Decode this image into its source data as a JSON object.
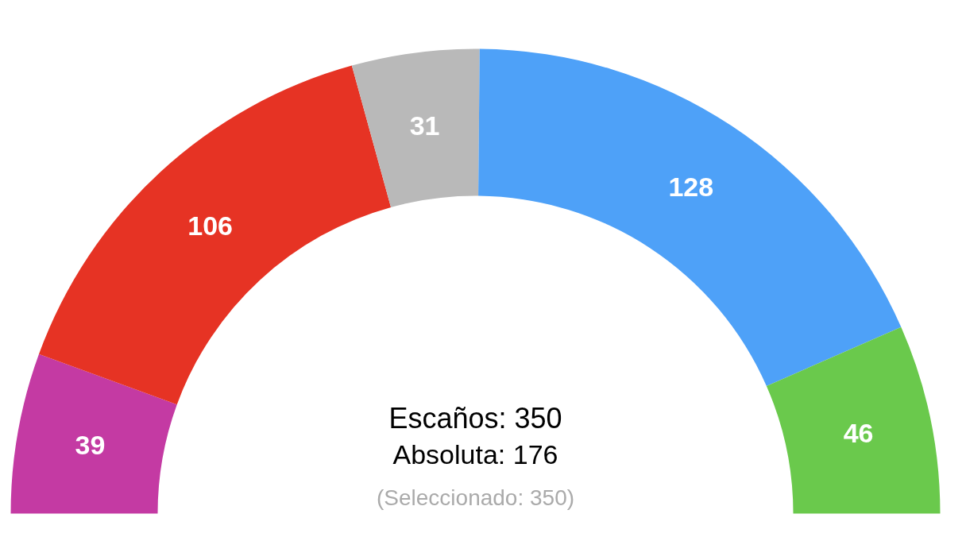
{
  "chart_data": {
    "type": "donut",
    "categories": [
      null,
      null,
      null,
      null,
      null
    ],
    "values": [
      39,
      106,
      31,
      128,
      46
    ],
    "colors": [
      "#c43aa3",
      "#e63324",
      "#b9b9b9",
      "#4ea1f8",
      "#6ac94c"
    ],
    "data_labels": true,
    "annotations": [
      "Escaños: 350",
      "Absoluta: 176",
      "(Seleccionado: 350)"
    ]
  }
}
